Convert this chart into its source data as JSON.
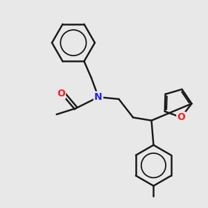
{
  "background_color": "#e8e8e8",
  "bond_color": "#1a1a1a",
  "nitrogen_color": "#2020ff",
  "oxygen_color": "#ff2020",
  "line_width": 1.8,
  "figsize": [
    3.0,
    3.0
  ],
  "dpi": 100,
  "xlim": [
    0,
    10
  ],
  "ylim": [
    0,
    10
  ]
}
